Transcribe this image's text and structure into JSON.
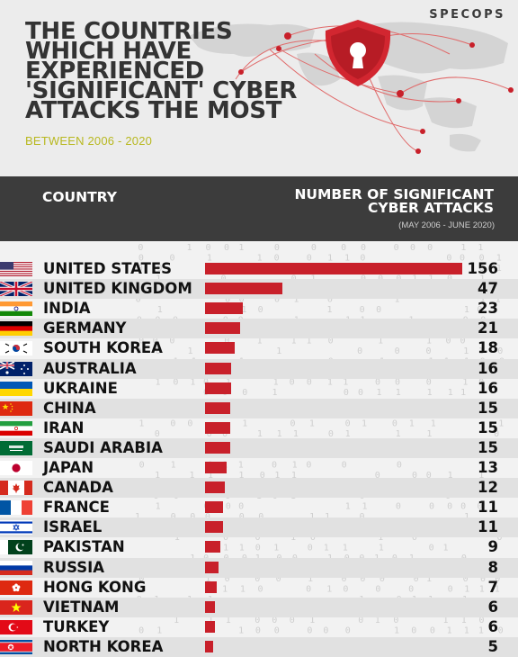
{
  "header": {
    "title_lines": [
      "THE COUNTRIES",
      "WHICH HAVE",
      "EXPERIENCED",
      "'SIGNIFICANT' CYBER",
      "ATTACKS THE MOST"
    ],
    "subtitle": "BETWEEN 2006 - 2020",
    "brand": "SPECOPS"
  },
  "columns": {
    "country": "COUNTRY",
    "value_line1": "NUMBER OF SIGNIFICANT",
    "value_line2": "CYBER ATTACKS",
    "range": "(MAY 2006 - JUNE 2020)"
  },
  "colors": {
    "bar": "#c8202a",
    "band": "#3c3c3c",
    "subtitle": "#b8b820"
  },
  "chart_data": {
    "type": "bar",
    "orientation": "horizontal",
    "categories": [
      "UNITED STATES",
      "UNITED KINGDOM",
      "INDIA",
      "GERMANY",
      "SOUTH KOREA",
      "AUSTRALIA",
      "UKRAINE",
      "CHINA",
      "IRAN",
      "SAUDI ARABIA",
      "JAPAN",
      "CANADA",
      "FRANCE",
      "ISRAEL",
      "PAKISTAN",
      "RUSSIA",
      "HONG KONG",
      "VIETNAM",
      "TURKEY",
      "NORTH KOREA"
    ],
    "values": [
      156,
      47,
      23,
      21,
      18,
      16,
      16,
      15,
      15,
      15,
      13,
      12,
      11,
      11,
      9,
      8,
      7,
      6,
      6,
      5
    ],
    "flags": [
      "us",
      "uk",
      "in",
      "de",
      "kr",
      "au",
      "ua",
      "cn",
      "ir",
      "sa",
      "jp",
      "ca",
      "fr",
      "il",
      "pk",
      "ru",
      "hk",
      "vn",
      "tr",
      "kp"
    ],
    "title": "THE COUNTRIES WHICH HAVE EXPERIENCED 'SIGNIFICANT' CYBER ATTACKS THE MOST",
    "subtitle": "BETWEEN 2006 - 2020",
    "xlabel": "NUMBER OF SIGNIFICANT CYBER ATTACKS",
    "ylabel": "COUNTRY",
    "xlim": [
      0,
      156
    ],
    "grid": false,
    "legend": "none"
  }
}
